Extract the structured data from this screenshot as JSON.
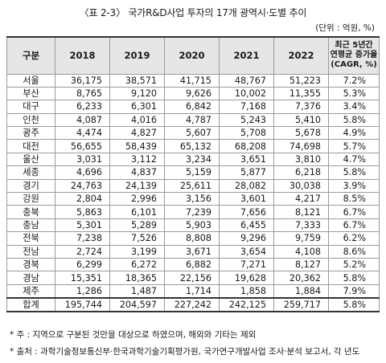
{
  "title": "〈표 2-3〉 국가R&D사업 투자의 17개 광역시·도별 추이",
  "unit": "(단위 : 억원, %)",
  "headers": [
    "구분",
    "2018",
    "2019",
    "2020",
    "2021",
    "2022"
  ],
  "cagr_header": [
    "최근 5년간",
    "연평균 증가율",
    "(CAGR, %)"
  ],
  "rows": [
    [
      "서울",
      "36,175",
      "38,571",
      "41,715",
      "48,767",
      "51,223",
      "7.2%"
    ],
    [
      "부산",
      "8,765",
      "9,120",
      "9,626",
      "10,002",
      "11,355",
      "5.3%"
    ],
    [
      "대구",
      "6,233",
      "6,301",
      "6,842",
      "7,168",
      "7,376",
      "3.4%"
    ],
    [
      "인천",
      "4,087",
      "4,016",
      "4,787",
      "5,243",
      "5,410",
      "5.8%"
    ],
    [
      "광주",
      "4,474",
      "4,827",
      "5,607",
      "5,708",
      "5,678",
      "4.9%"
    ],
    [
      "대전",
      "56,655",
      "58,439",
      "65,132",
      "68,208",
      "74,698",
      "5.7%"
    ],
    [
      "울산",
      "3,031",
      "3,112",
      "3,234",
      "3,651",
      "3,810",
      "4.7%"
    ],
    [
      "세종",
      "4,696",
      "4,837",
      "5,159",
      "5,877",
      "6,218",
      "5.8%"
    ],
    [
      "경기",
      "24,763",
      "24,139",
      "25,611",
      "28,082",
      "30,038",
      "3.9%"
    ],
    [
      "강원",
      "2,804",
      "2,996",
      "3,156",
      "3,601",
      "4,217",
      "8.5%"
    ],
    [
      "충북",
      "5,863",
      "6,101",
      "7,239",
      "7,656",
      "8,121",
      "6.7%"
    ],
    [
      "충남",
      "5,301",
      "5,289",
      "5,903",
      "6,455",
      "7,333",
      "6.7%"
    ],
    [
      "전북",
      "7,238",
      "7,526",
      "8,808",
      "9,296",
      "9,759",
      "6.2%"
    ],
    [
      "전남",
      "2,724",
      "3,199",
      "3,671",
      "3,654",
      "4,108",
      "8.6%"
    ],
    [
      "경북",
      "6,299",
      "6,272",
      "6,882",
      "7,271",
      "8,127",
      "5.2%"
    ],
    [
      "경남",
      "15,351",
      "18,365",
      "22,156",
      "19,628",
      "20,362",
      "5.8%"
    ],
    [
      "제주",
      "1,286",
      "1,487",
      "1,714",
      "1,858",
      "1,884",
      "7.9%"
    ]
  ],
  "total": [
    "합계",
    "195,744",
    "204,597",
    "227,242",
    "242,125",
    "259,717",
    "5.8%"
  ],
  "notes": [
    "* 주 : 지역으로 구분된 것만을 대상으로 하였으며, 해외와 기타는 제외",
    "* 출처 : 과학기술정보통신부·한국과학기술기획평가원, 국가연구개발사업 조사·분석 보고서, 각 년도"
  ]
}
